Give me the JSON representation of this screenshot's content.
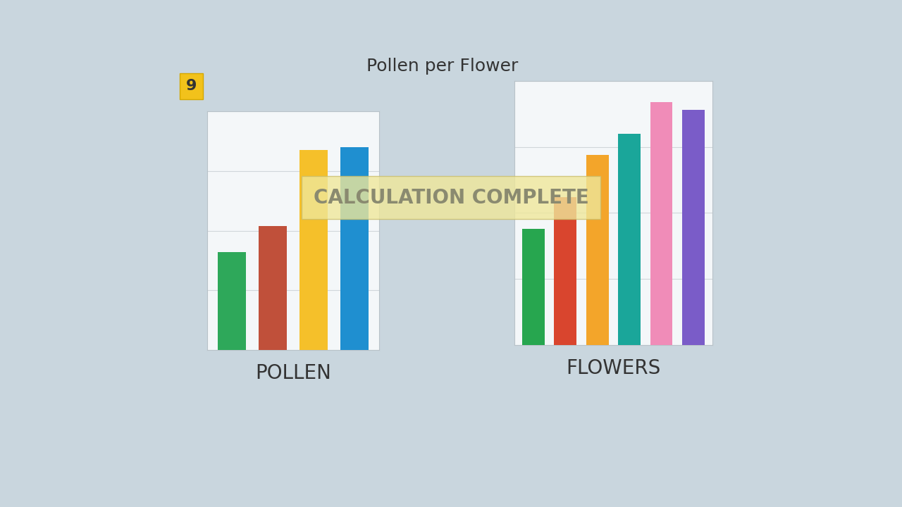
{
  "title": "Pollen per Flower",
  "badge": "9",
  "overlay": "CALCULATION COMPLETE",
  "chart_data": [
    {
      "type": "bar",
      "x_label": "POLLEN",
      "categories": [
        null,
        null,
        null,
        null
      ],
      "values": [
        41,
        52,
        84,
        85
      ],
      "colors": [
        "#2ea85a",
        "#c0503a",
        "#f5c02a",
        "#1f8fd0"
      ],
      "ylim": [
        0,
        100
      ],
      "yticks": [
        0,
        25,
        50,
        75,
        100
      ],
      "grid": true,
      "tick_labels": false
    },
    {
      "type": "bar",
      "x_label": "FLOWERS",
      "categories": [
        null,
        null,
        null,
        null,
        null,
        null
      ],
      "values": [
        44,
        56,
        72,
        80,
        92,
        89
      ],
      "colors": [
        "#27a64f",
        "#d9452e",
        "#f3a52a",
        "#1aa69a",
        "#f08cb8",
        "#7a5cc8"
      ],
      "ylim": [
        0,
        100
      ],
      "yticks": [
        0,
        25,
        50,
        75,
        100
      ],
      "grid": true,
      "tick_labels": false
    }
  ]
}
